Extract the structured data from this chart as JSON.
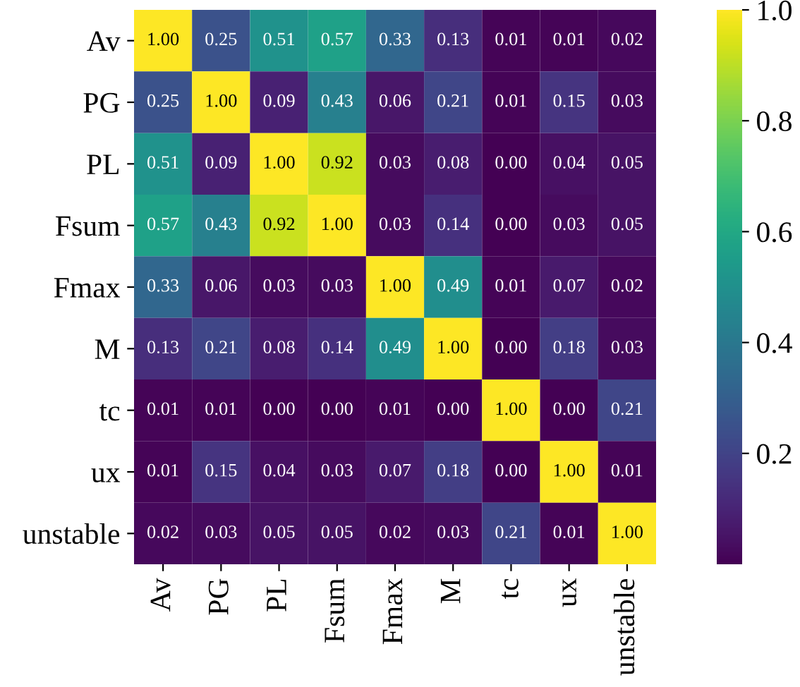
{
  "chart_data": {
    "type": "heatmap",
    "categories": [
      "Av",
      "PG",
      "PL",
      "Fsum",
      "Fmax",
      "M",
      "tc",
      "ux",
      "unstable"
    ],
    "y_categories": [
      "Av",
      "PG",
      "PL",
      "Fsum",
      "Fmax",
      "M",
      "tc",
      "ux",
      "unstable"
    ],
    "cells": [
      [
        1.0,
        0.25,
        0.51,
        0.57,
        0.33,
        0.13,
        0.01,
        0.01,
        0.02
      ],
      [
        0.25,
        1.0,
        0.09,
        0.43,
        0.06,
        0.21,
        0.01,
        0.15,
        0.03
      ],
      [
        0.51,
        0.09,
        1.0,
        0.92,
        0.03,
        0.08,
        0.0,
        0.04,
        0.05
      ],
      [
        0.57,
        0.43,
        0.92,
        1.0,
        0.03,
        0.14,
        0.0,
        0.03,
        0.05
      ],
      [
        0.33,
        0.06,
        0.03,
        0.03,
        1.0,
        0.49,
        0.01,
        0.07,
        0.02
      ],
      [
        0.13,
        0.21,
        0.08,
        0.14,
        0.49,
        1.0,
        0.0,
        0.18,
        0.03
      ],
      [
        0.01,
        0.01,
        0.0,
        0.0,
        0.01,
        0.0,
        1.0,
        0.0,
        0.21
      ],
      [
        0.01,
        0.15,
        0.04,
        0.03,
        0.07,
        0.18,
        0.0,
        1.0,
        0.01
      ],
      [
        0.02,
        0.03,
        0.05,
        0.05,
        0.02,
        0.03,
        0.21,
        0.01,
        1.0
      ]
    ],
    "cell_labels": [
      [
        "1.00",
        "0.25",
        "0.51",
        "0.57",
        "0.33",
        "0.13",
        "0.01",
        "0.01",
        "0.02"
      ],
      [
        "0.25",
        "1.00",
        "0.09",
        "0.43",
        "0.06",
        "0.21",
        "0.01",
        "0.15",
        "0.03"
      ],
      [
        "0.51",
        "0.09",
        "1.00",
        "0.92",
        "0.03",
        "0.08",
        "0.00",
        "0.04",
        "0.05"
      ],
      [
        "0.57",
        "0.43",
        "0.92",
        "1.00",
        "0.03",
        "0.14",
        "0.00",
        "0.03",
        "0.05"
      ],
      [
        "0.33",
        "0.06",
        "0.03",
        "0.03",
        "1.00",
        "0.49",
        "0.01",
        "0.07",
        "0.02"
      ],
      [
        "0.13",
        "0.21",
        "0.08",
        "0.14",
        "0.49",
        "1.00",
        "0.00",
        "0.18",
        "0.03"
      ],
      [
        "0.01",
        "0.01",
        "0.00",
        "0.00",
        "0.01",
        "0.00",
        "1.00",
        "0.00",
        "0.21"
      ],
      [
        "0.01",
        "0.15",
        "0.04",
        "0.03",
        "0.07",
        "0.18",
        "0.00",
        "1.00",
        "0.01"
      ],
      [
        "0.02",
        "0.03",
        "0.05",
        "0.05",
        "0.02",
        "0.03",
        "0.21",
        "0.01",
        "1.00"
      ]
    ],
    "clim": [
      0.0,
      1.0
    ],
    "cticks": [
      {
        "value": 0.2,
        "label": "0.2"
      },
      {
        "value": 0.4,
        "label": "0.4"
      },
      {
        "value": 0.6,
        "label": "0.6"
      },
      {
        "value": 0.8,
        "label": "0.8"
      },
      {
        "value": 1.0,
        "label": "1.0"
      }
    ]
  }
}
